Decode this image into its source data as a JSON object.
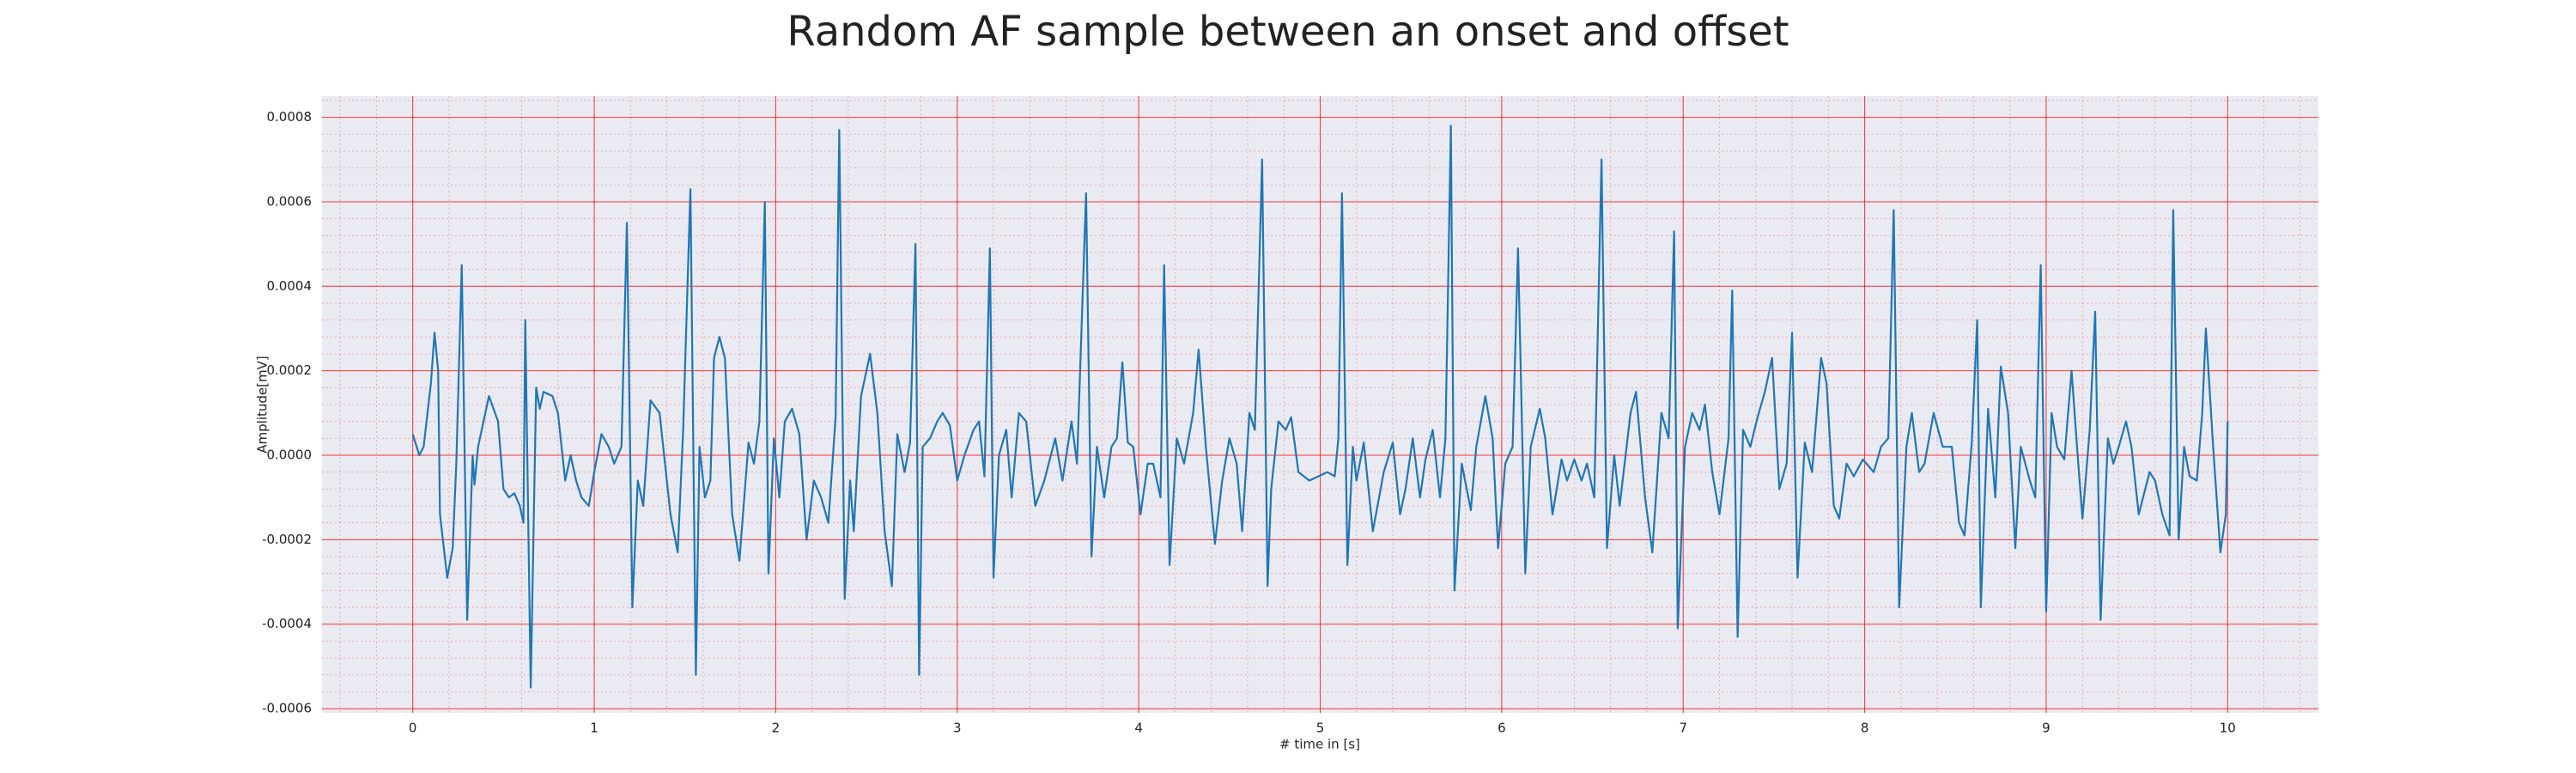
{
  "chart_data": {
    "type": "line",
    "title": "Random AF sample between an onset and offset",
    "xlabel": "# time in [s]",
    "ylabel": "Amplitude[mV]",
    "color": "#1f77b4",
    "grid": true,
    "grid_color": "#ff0000",
    "minor_grid": true,
    "background": "#eaeaf2",
    "xlim": [
      -0.5,
      10.5
    ],
    "ylim": [
      -0.00061,
      0.00085
    ],
    "xticks": [
      0,
      1,
      2,
      3,
      4,
      5,
      6,
      7,
      8,
      9,
      10
    ],
    "yticks": [
      -0.0006,
      -0.0004,
      -0.0002,
      {
        "value": 0,
        "label": "0.0000"
      },
      0.0002,
      0.0004,
      0.0006,
      0.0008
    ],
    "x": [
      0,
      0.036,
      0.06,
      0.1,
      0.12,
      0.14,
      0.15,
      0.19,
      0.22,
      0.24,
      0.27,
      0.3,
      0.33,
      0.34,
      0.36,
      0.42,
      0.47,
      0.5,
      0.53,
      0.56,
      0.59,
      0.61,
      0.62,
      0.65,
      0.68,
      0.7,
      0.72,
      0.77,
      0.8,
      0.84,
      0.87,
      0.9,
      0.93,
      0.97,
      1.0,
      1.04,
      1.08,
      1.11,
      1.15,
      1.18,
      1.21,
      1.24,
      1.27,
      1.31,
      1.36,
      1.42,
      1.46,
      1.49,
      1.53,
      1.56,
      1.58,
      1.61,
      1.64,
      1.66,
      1.69,
      1.72,
      1.76,
      1.8,
      1.85,
      1.88,
      1.91,
      1.94,
      1.96,
      1.99,
      2.02,
      2.05,
      2.09,
      2.13,
      2.17,
      2.21,
      2.25,
      2.29,
      2.33,
      2.35,
      2.38,
      2.41,
      2.43,
      2.47,
      2.52,
      2.56,
      2.6,
      2.64,
      2.67,
      2.71,
      2.74,
      2.77,
      2.79,
      2.81,
      2.85,
      2.89,
      2.92,
      2.96,
      3.0,
      3.04,
      3.09,
      3.12,
      3.15,
      3.18,
      3.2,
      3.23,
      3.27,
      3.3,
      3.34,
      3.38,
      3.43,
      3.48,
      3.54,
      3.58,
      3.63,
      3.66,
      3.71,
      3.74,
      3.77,
      3.81,
      3.85,
      3.88,
      3.91,
      3.94,
      3.97,
      4.01,
      4.05,
      4.08,
      4.12,
      4.14,
      4.17,
      4.21,
      4.25,
      4.3,
      4.33,
      4.37,
      4.42,
      4.46,
      4.5,
      4.54,
      4.57,
      4.61,
      4.64,
      4.68,
      4.71,
      4.73,
      4.77,
      4.81,
      4.84,
      4.88,
      4.94,
      4.99,
      5.04,
      5.08,
      5.1,
      5.12,
      5.15,
      5.18,
      5.2,
      5.24,
      5.29,
      5.35,
      5.4,
      5.44,
      5.47,
      5.51,
      5.55,
      5.58,
      5.62,
      5.66,
      5.69,
      5.72,
      5.74,
      5.78,
      5.83,
      5.86,
      5.91,
      5.95,
      5.98,
      6.02,
      6.06,
      6.09,
      6.13,
      6.16,
      6.21,
      6.24,
      6.28,
      6.33,
      6.36,
      6.4,
      6.44,
      6.47,
      6.51,
      6.55,
      6.58,
      6.62,
      6.65,
      6.71,
      6.74,
      6.79,
      6.83,
      6.88,
      6.92,
      6.95,
      6.97,
      7.01,
      7.05,
      7.09,
      7.12,
      7.16,
      7.2,
      7.25,
      7.27,
      7.3,
      7.33,
      7.37,
      7.41,
      7.45,
      7.49,
      7.53,
      7.57,
      7.6,
      7.63,
      7.67,
      7.71,
      7.76,
      7.79,
      7.83,
      7.86,
      7.9,
      7.94,
      7.99,
      8.05,
      8.09,
      8.13,
      8.16,
      8.19,
      8.23,
      8.26,
      8.3,
      8.33,
      8.38,
      8.43,
      8.48,
      8.52,
      8.55,
      8.59,
      8.62,
      8.64,
      8.68,
      8.72,
      8.75,
      8.79,
      8.83,
      8.86,
      8.91,
      8.94,
      8.97,
      9.0,
      9.03,
      9.06,
      9.1,
      9.14,
      9.17,
      9.2,
      9.24,
      9.27,
      9.3,
      9.34,
      9.37,
      9.4,
      9.44,
      9.47,
      9.51,
      9.57,
      9.6,
      9.64,
      9.68,
      9.7,
      9.73,
      9.76,
      9.79,
      9.83,
      9.86,
      9.88,
      9.92,
      9.96,
      9.99,
      10.0
    ],
    "values": [
      5e-05,
      0.0,
      2e-05,
      0.00017,
      0.00029,
      0.0002,
      -0.00014,
      -0.00029,
      -0.00022,
      -2e-05,
      0.00045,
      -0.00039,
      0.0,
      -7e-05,
      2e-05,
      0.00014,
      8e-05,
      -8e-05,
      -0.0001,
      -9e-05,
      -0.00012,
      -0.00016,
      0.00032,
      -0.00055,
      0.00016,
      0.00011,
      0.00015,
      0.00014,
      0.0001,
      -6e-05,
      0.0,
      -6e-05,
      -0.0001,
      -0.00012,
      -4e-05,
      5e-05,
      2e-05,
      -2e-05,
      2e-05,
      0.00055,
      -0.00036,
      -6e-05,
      -0.00012,
      0.00013,
      0.0001,
      -0.00014,
      -0.00023,
      6e-05,
      0.00063,
      -0.00052,
      2e-05,
      -0.0001,
      -6e-05,
      0.00023,
      0.00028,
      0.00023,
      -0.00014,
      -0.00025,
      3e-05,
      -2e-05,
      8e-05,
      0.0006,
      -0.00028,
      4e-05,
      -0.0001,
      8e-05,
      0.00011,
      5e-05,
      -0.0002,
      -6e-05,
      -0.0001,
      -0.00016,
      9e-05,
      0.00077,
      -0.00034,
      -6e-05,
      -0.00018,
      0.00014,
      0.00024,
      0.0001,
      -0.00018,
      -0.00031,
      5e-05,
      -4e-05,
      3e-05,
      0.0005,
      -0.00052,
      2e-05,
      4e-05,
      8e-05,
      0.0001,
      7e-05,
      -6e-05,
      0.0,
      6e-05,
      8e-05,
      -5e-05,
      0.00049,
      -0.00029,
      0.0,
      6e-05,
      -0.0001,
      0.0001,
      8e-05,
      -0.00012,
      -6e-05,
      4e-05,
      -6e-05,
      8e-05,
      -2e-05,
      0.00062,
      -0.00024,
      2e-05,
      -0.0001,
      2e-05,
      4e-05,
      0.00022,
      3e-05,
      2e-05,
      -0.00014,
      -2e-05,
      -2e-05,
      -0.0001,
      0.00045,
      -0.00026,
      4e-05,
      -2e-05,
      0.0001,
      0.00025,
      2e-05,
      -0.00021,
      -6e-05,
      4e-05,
      -2e-05,
      -0.00018,
      0.0001,
      6e-05,
      0.0007,
      -0.00031,
      -8e-05,
      8e-05,
      6e-05,
      9e-05,
      -4e-05,
      -6e-05,
      -5e-05,
      -4e-05,
      -5e-05,
      4e-05,
      0.00062,
      -0.00026,
      2e-05,
      -6e-05,
      3e-05,
      -0.00018,
      -4e-05,
      3e-05,
      -0.00014,
      -8e-05,
      4e-05,
      -0.0001,
      -1e-05,
      6e-05,
      -0.0001,
      4e-05,
      0.00078,
      -0.00032,
      -2e-05,
      -0.00013,
      2e-05,
      0.00014,
      4e-05,
      -0.00022,
      -2e-05,
      2e-05,
      0.00049,
      -0.00028,
      2e-05,
      0.00011,
      4e-05,
      -0.00014,
      -1e-05,
      -6e-05,
      -1e-05,
      -6e-05,
      -2e-05,
      -0.0001,
      0.0007,
      -0.00022,
      0.0,
      -0.00012,
      0.0001,
      0.00015,
      -0.0001,
      -0.00023,
      0.0001,
      4e-05,
      0.00053,
      -0.00041,
      2e-05,
      0.0001,
      6e-05,
      0.00012,
      -4e-05,
      -0.00014,
      4e-05,
      0.00039,
      -0.00043,
      6e-05,
      2e-05,
      9e-05,
      0.00015,
      0.00023,
      -8e-05,
      -2e-05,
      0.00029,
      -0.00029,
      3e-05,
      -4e-05,
      0.00023,
      0.00017,
      -0.00012,
      -0.00015,
      -2e-05,
      -5e-05,
      -1e-05,
      -4e-05,
      2e-05,
      4e-05,
      0.00058,
      -0.00036,
      2e-05,
      0.0001,
      -4e-05,
      -2e-05,
      0.0001,
      2e-05,
      2e-05,
      -0.00016,
      -0.00019,
      3e-05,
      0.00032,
      -0.00036,
      0.00011,
      -0.0001,
      0.00021,
      0.0001,
      -0.00022,
      2e-05,
      -6e-05,
      -0.0001,
      0.00045,
      -0.00037,
      0.0001,
      2e-05,
      -1e-05,
      0.0002,
      2e-05,
      -0.00015,
      6e-05,
      0.00034,
      -0.00039,
      4e-05,
      -2e-05,
      2e-05,
      8e-05,
      2e-05,
      -0.00014,
      -4e-05,
      -6e-05,
      -0.00014,
      -0.00019,
      0.00058,
      -0.0002,
      2e-05,
      -5e-05,
      -6e-05,
      0.0001,
      0.0003,
      2e-05,
      -0.00023,
      -0.00014,
      8e-05
    ]
  }
}
